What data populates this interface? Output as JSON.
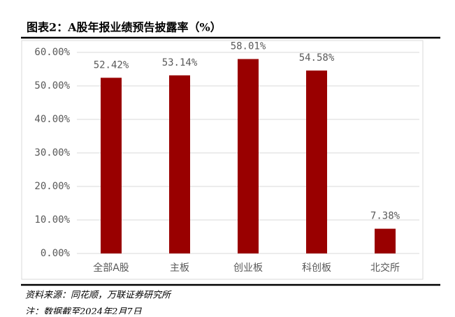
{
  "chart_data": {
    "type": "bar",
    "title": "图表2：A股年报业绩预告披露率（%）",
    "categories": [
      "全部A股",
      "主板",
      "创业板",
      "科创板",
      "北交所"
    ],
    "values": [
      52.42,
      53.14,
      58.01,
      54.58,
      7.38
    ],
    "value_labels": [
      "52.42%",
      "53.14%",
      "58.01%",
      "54.58%",
      "7.38%"
    ],
    "color": "#990000",
    "ylim": [
      0,
      60
    ],
    "yticks": [
      {
        "value": 0,
        "label": "0.00%"
      },
      {
        "value": 10,
        "label": "10.00%"
      },
      {
        "value": 20,
        "label": "20.00%"
      },
      {
        "value": 30,
        "label": "30.00%"
      },
      {
        "value": 40,
        "label": "40.00%"
      },
      {
        "value": 50,
        "label": "50.00%"
      },
      {
        "value": 60,
        "label": "60.00%"
      }
    ],
    "grid": true
  },
  "footer": {
    "source": "资料来源：同花顺，万联证券研究所",
    "note": "注：数据截至2024年2月7日"
  }
}
